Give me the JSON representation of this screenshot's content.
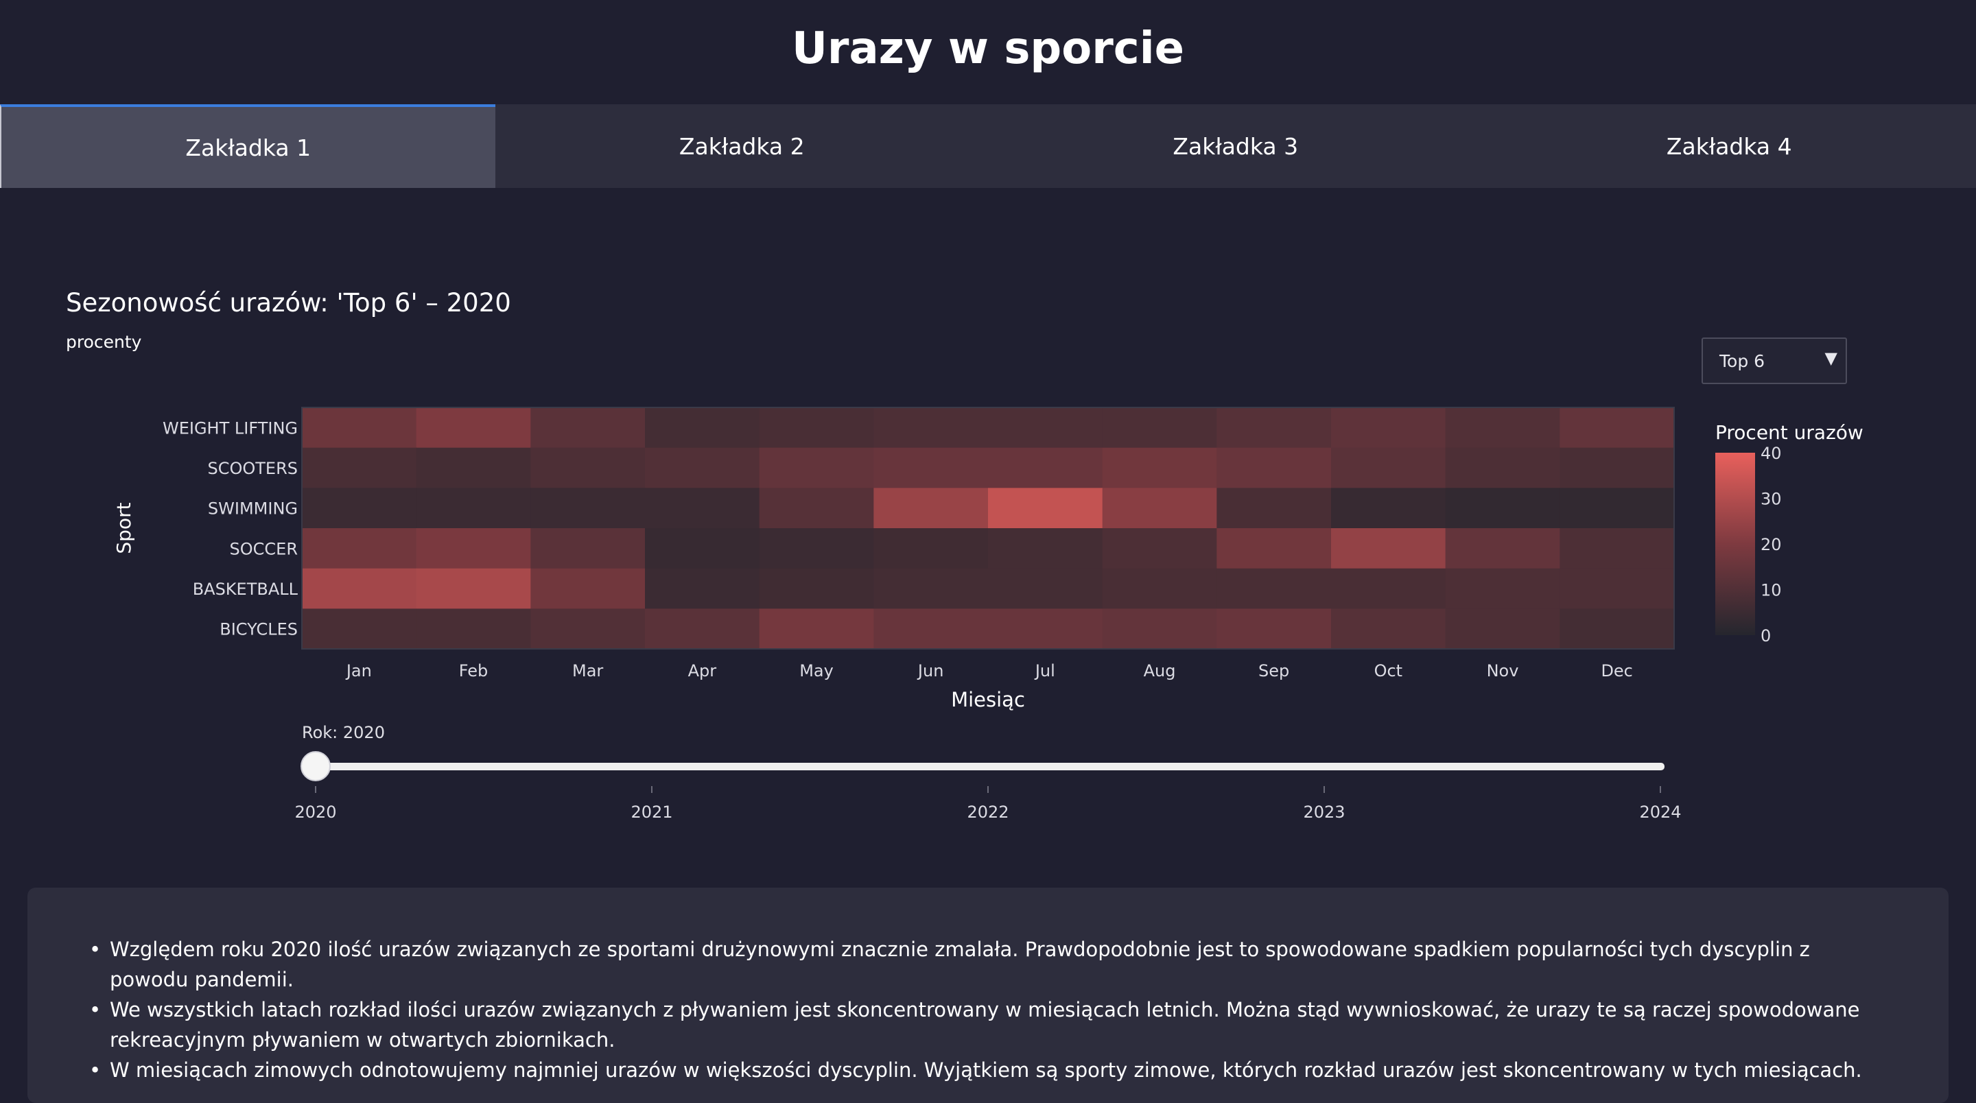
{
  "page": {
    "title": "Urazy w sporcie"
  },
  "tabs": [
    {
      "label": "Zakładka 1",
      "active": true
    },
    {
      "label": "Zakładka 2",
      "active": false
    },
    {
      "label": "Zakładka 3",
      "active": false
    },
    {
      "label": "Zakładka 4",
      "active": false
    }
  ],
  "dropdown": {
    "selected": "Top 6"
  },
  "slider": {
    "label": "Rok: 2020",
    "value": 2020,
    "ticks": [
      "2020",
      "2021",
      "2022",
      "2023",
      "2024"
    ]
  },
  "notes": [
    "Względem roku 2020 ilość urazów związanych ze sportami drużynowymi znacznie zmalała. Prawdopodobnie jest to spowodowane spadkiem popularności tych dyscyplin z powodu pandemii.",
    "We wszystkich latach rozkład ilości urazów związanych z pływaniem jest skoncentrowany w miesiącach letnich. Można stąd wywnioskować, że urazy te są raczej spowodowane rekreacyjnym pływaniem w otwartych zbiornikach.",
    "W miesiącach zimowych odnotowujemy najmniej urazów w większości dyscyplin. Wyjątkiem są sporty zimowe, których rozkład urazów jest skoncentrowany w tych miesiącach."
  ],
  "colors": {
    "low": "#25262e",
    "high": "#e8605c",
    "slider_track": "#f0f0f0",
    "tab_accent": "#3b7ddd"
  },
  "chart_data": {
    "type": "heatmap",
    "title": "Sezonowość urazów: 'Top 6' – 2020",
    "subtitle": "procenty",
    "xlabel": "Miesiąc",
    "ylabel": "Sport",
    "x": [
      "Jan",
      "Feb",
      "Mar",
      "Apr",
      "May",
      "Jun",
      "Jul",
      "Aug",
      "Sep",
      "Oct",
      "Nov",
      "Dec"
    ],
    "y": [
      "WEIGHT LIFTING",
      "SCOOTERS",
      "SWIMMING",
      "SOCCER",
      "BASKETBALL",
      "BICYCLES"
    ],
    "z": [
      [
        16,
        20,
        12,
        7,
        8,
        9,
        9,
        9,
        11,
        13,
        10,
        14
      ],
      [
        8,
        7,
        9,
        10,
        14,
        15,
        15,
        17,
        15,
        12,
        9,
        8
      ],
      [
        5,
        5,
        5,
        5,
        11,
        25,
        33,
        22,
        8,
        4,
        3,
        3
      ],
      [
        17,
        19,
        12,
        4,
        5,
        6,
        7,
        9,
        17,
        24,
        14,
        9
      ],
      [
        27,
        28,
        17,
        5,
        6,
        7,
        7,
        8,
        8,
        8,
        9,
        9
      ],
      [
        8,
        8,
        10,
        12,
        18,
        15,
        15,
        14,
        15,
        11,
        9,
        7
      ]
    ],
    "colorbar": {
      "title": "Procent urazów",
      "range": [
        0,
        40
      ],
      "ticks": [
        0,
        10,
        20,
        30,
        40
      ]
    }
  }
}
